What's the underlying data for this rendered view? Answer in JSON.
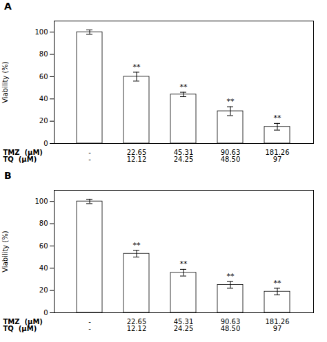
{
  "chart_data": [
    {
      "type": "bar",
      "title": "A",
      "categories": [
        [
          "-",
          "-"
        ],
        [
          "22.65",
          "12.12"
        ],
        [
          "45.31",
          "24.25"
        ],
        [
          "90.63",
          "48.50"
        ],
        [
          "181.26",
          "97"
        ]
      ],
      "values": [
        100,
        60,
        44,
        29,
        15
      ],
      "errors": [
        2,
        4,
        2,
        4,
        3
      ],
      "annotations": [
        null,
        "**",
        "**",
        "**",
        "**"
      ],
      "xlabel": [
        "TMZ  (μM)",
        "TQ  (μM)"
      ],
      "ylabel": "Viability (%)",
      "ylim": [
        0,
        110
      ],
      "yticks": [
        0,
        20,
        40,
        60,
        80,
        100
      ],
      "color": "white",
      "grid": false
    },
    {
      "type": "bar",
      "title": "B",
      "categories": [
        [
          "-",
          "-"
        ],
        [
          "22.65",
          "12.12"
        ],
        [
          "45.31",
          "24.25"
        ],
        [
          "90.63",
          "48.50"
        ],
        [
          "181.26",
          "97"
        ]
      ],
      "values": [
        100,
        53,
        36,
        25,
        19
      ],
      "errors": [
        2,
        3,
        3,
        3,
        3
      ],
      "annotations": [
        null,
        "**",
        "**",
        "**",
        "**"
      ],
      "xlabel": [
        "TMZ  (μM)",
        "TQ  (μM)"
      ],
      "ylabel": "Viability (%)",
      "ylim": [
        0,
        110
      ],
      "yticks": [
        0,
        20,
        40,
        60,
        80,
        100
      ],
      "color": "white",
      "grid": false
    }
  ]
}
